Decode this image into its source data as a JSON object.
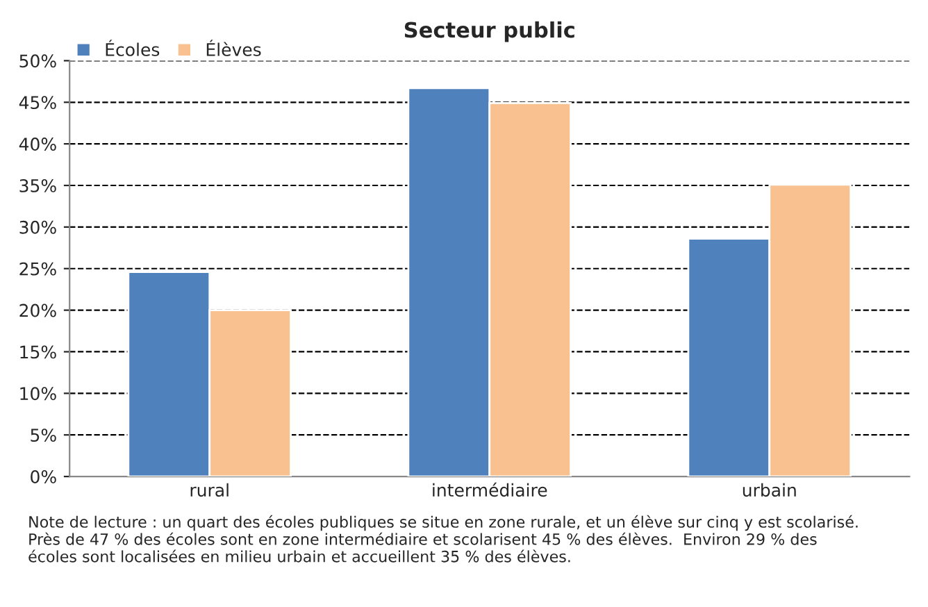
{
  "chart_data": {
    "type": "bar",
    "title": "Secteur public",
    "categories": [
      "rural",
      "intermédiaire",
      "urbain"
    ],
    "series": [
      {
        "name": "Écoles",
        "color": "#4f81bd",
        "values": [
          24.6,
          46.7,
          28.6
        ]
      },
      {
        "name": "Élèves",
        "color": "#f9c090",
        "values": [
          20.0,
          44.9,
          35.1
        ]
      }
    ],
    "ylim": [
      0,
      50
    ],
    "yticks": [
      {
        "value": 0,
        "label": "0%"
      },
      {
        "value": 5,
        "label": "5%"
      },
      {
        "value": 10,
        "label": "10%"
      },
      {
        "value": 15,
        "label": "15%"
      },
      {
        "value": 20,
        "label": "20%"
      },
      {
        "value": 25,
        "label": "25%"
      },
      {
        "value": 30,
        "label": "30%"
      },
      {
        "value": 35,
        "label": "35%"
      },
      {
        "value": 40,
        "label": "40%"
      },
      {
        "value": 45,
        "label": "45%"
      },
      {
        "value": 50,
        "label": "50%"
      }
    ],
    "grid": "y",
    "legend": "top left",
    "annotations": [
      "Note de lecture : un quart des écoles publiques se situe en zone rurale, et un élève sur cinq y est scolarisé.\nPrès de 47 % des écoles sont en zone intermédiaire et scolarisent 45 % des élèves.  Environ 29 % des\nécoles sont localisées en milieu urbain et accueillent 35 % des élèves."
    ]
  }
}
